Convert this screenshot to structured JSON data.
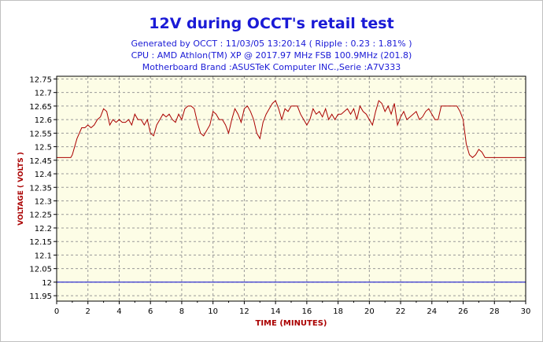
{
  "chart_data": {
    "type": "line",
    "title": "12V during OCCT's retail test",
    "subtitle_lines": [
      "Generated by OCCT : 11/03/05 13:20:14 ( Ripple : 0.23 : 1.81% )",
      "CPU : AMD Athlon(TM) XP @ 2017.97 MHz FSB 100.9MHz (201.8)",
      "Motherboard Brand :ASUSTeK Computer INC.,Serie :A7V333"
    ],
    "xlabel": "TIME (MINUTES)",
    "ylabel": "VOLTAGE ( VOLTS )",
    "xlim": [
      0,
      30
    ],
    "ylim": [
      11.93,
      12.76
    ],
    "x_ticks": [
      "0",
      "2",
      "4",
      "6",
      "8",
      "10",
      "12",
      "14",
      "16",
      "18",
      "20",
      "22",
      "24",
      "26",
      "28",
      "30"
    ],
    "y_ticks": [
      "12.75",
      "12.7",
      "12.65",
      "12.6",
      "12.55",
      "12.5",
      "12.45",
      "12.4",
      "12.35",
      "12.3",
      "12.25",
      "12.2",
      "12.15",
      "12.1",
      "12.05",
      "12",
      "11.95"
    ],
    "grid": true,
    "colors": {
      "series": "#aa0000",
      "reference": "#0000cc",
      "plot_bg": "#fdfde6",
      "title": "#1a1ad6",
      "axis_label": "#aa0000",
      "grid": "#999999"
    },
    "series": [
      {
        "x": [
          0,
          0.3,
          0.6,
          0.9,
          1.0,
          1.3,
          1.6,
          1.8,
          2.0,
          2.2,
          2.4,
          2.6,
          2.8,
          3.0,
          3.2,
          3.4,
          3.6,
          3.8,
          4.0,
          4.2,
          4.4,
          4.6,
          4.8,
          5.0,
          5.2,
          5.4,
          5.6,
          5.8,
          6.0,
          6.2,
          6.4,
          6.6,
          6.8,
          7.0,
          7.2,
          7.4,
          7.6,
          7.8,
          8.0,
          8.2,
          8.4,
          8.6,
          8.8,
          9.0,
          9.2,
          9.4,
          9.6,
          9.8,
          10.0,
          10.2,
          10.4,
          10.6,
          10.8,
          11.0,
          11.2,
          11.4,
          11.6,
          11.8,
          12.0,
          12.2,
          12.4,
          12.6,
          12.8,
          13.0,
          13.2,
          13.4,
          13.6,
          13.8,
          14.0,
          14.2,
          14.4,
          14.6,
          14.8,
          15.0,
          15.2,
          15.4,
          15.6,
          15.8,
          16.0,
          16.2,
          16.4,
          16.6,
          16.8,
          17.0,
          17.2,
          17.4,
          17.6,
          17.8,
          18.0,
          18.2,
          18.4,
          18.6,
          18.8,
          19.0,
          19.2,
          19.4,
          19.6,
          19.8,
          20.0,
          20.2,
          20.4,
          20.6,
          20.8,
          21.0,
          21.2,
          21.4,
          21.6,
          21.8,
          22.0,
          22.2,
          22.4,
          22.6,
          22.8,
          23.0,
          23.2,
          23.4,
          23.6,
          23.8,
          24.0,
          24.2,
          24.4,
          24.6,
          24.8,
          25.0,
          25.2,
          25.4,
          25.6,
          25.8,
          26.0,
          26.2,
          26.4,
          26.6,
          26.8,
          27.0,
          27.2,
          27.4,
          27.6,
          28.0,
          28.5,
          29.0,
          29.5,
          30.0
        ],
        "y": [
          12.46,
          12.46,
          12.46,
          12.46,
          12.47,
          12.53,
          12.57,
          12.57,
          12.58,
          12.57,
          12.58,
          12.6,
          12.61,
          12.64,
          12.63,
          12.58,
          12.6,
          12.59,
          12.6,
          12.59,
          12.59,
          12.6,
          12.58,
          12.62,
          12.6,
          12.6,
          12.58,
          12.6,
          12.55,
          12.54,
          12.58,
          12.6,
          12.62,
          12.61,
          12.62,
          12.6,
          12.59,
          12.62,
          12.6,
          12.64,
          12.65,
          12.65,
          12.64,
          12.59,
          12.55,
          12.54,
          12.56,
          12.58,
          12.63,
          12.62,
          12.6,
          12.6,
          12.58,
          12.55,
          12.6,
          12.64,
          12.62,
          12.59,
          12.64,
          12.65,
          12.63,
          12.6,
          12.55,
          12.53,
          12.59,
          12.62,
          12.64,
          12.66,
          12.67,
          12.64,
          12.6,
          12.64,
          12.63,
          12.65,
          12.65,
          12.65,
          12.62,
          12.6,
          12.58,
          12.6,
          12.64,
          12.62,
          12.63,
          12.61,
          12.64,
          12.6,
          12.62,
          12.6,
          12.62,
          12.62,
          12.63,
          12.64,
          12.62,
          12.64,
          12.6,
          12.65,
          12.63,
          12.62,
          12.6,
          12.58,
          12.63,
          12.67,
          12.66,
          12.63,
          12.65,
          12.62,
          12.66,
          12.58,
          12.61,
          12.63,
          12.6,
          12.61,
          12.62,
          12.63,
          12.6,
          12.61,
          12.63,
          12.64,
          12.62,
          12.6,
          12.6,
          12.65,
          12.65,
          12.65,
          12.65,
          12.65,
          12.65,
          12.63,
          12.6,
          12.51,
          12.47,
          12.46,
          12.47,
          12.49,
          12.48,
          12.46,
          12.46,
          12.46,
          12.46,
          12.46,
          12.46,
          12.46
        ]
      },
      {
        "x": [
          0,
          30
        ],
        "y": [
          12.0,
          12.0
        ]
      }
    ]
  }
}
